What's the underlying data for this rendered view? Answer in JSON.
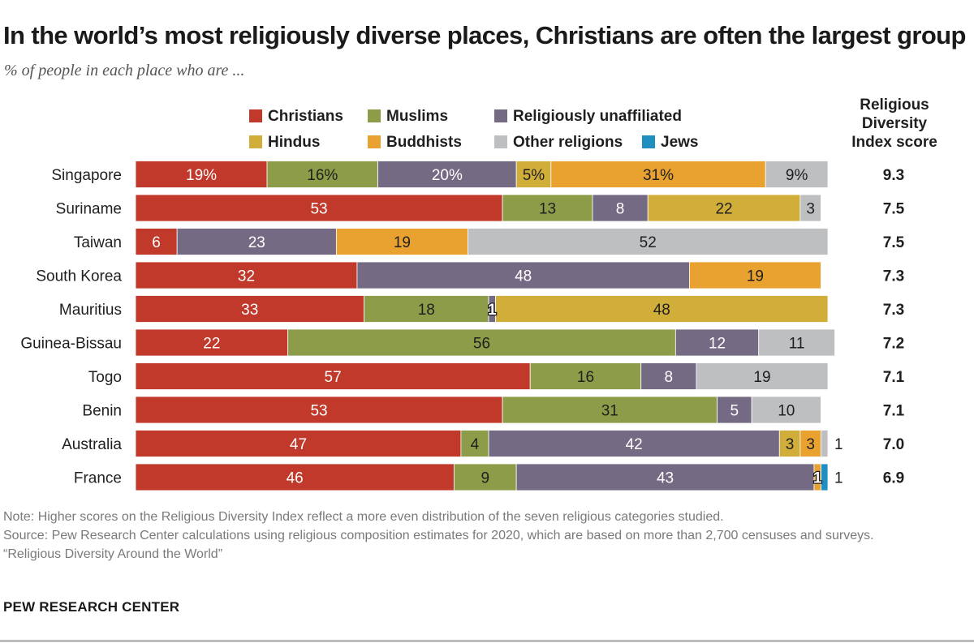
{
  "header": {
    "title": "In the world’s most religiously diverse places, Christians are often the largest group",
    "subtitle": "% of people in each place who are ..."
  },
  "index_header": {
    "line1": "Religious",
    "line2": "Diversity",
    "line3": "Index score"
  },
  "footer": {
    "note": "Note: Higher scores on the Religious Diversity Index reflect a more even distribution of the seven religious categories studied.",
    "source": "Source: Pew Research Center calculations using religious composition estimates for 2020, which are based on more than 2,700 censuses and surveys.",
    "report": "“Religious Diversity Around the World”",
    "brand": "PEW RESEARCH CENTER"
  },
  "chart_data": {
    "type": "bar",
    "orientation": "horizontal",
    "stacked": true,
    "title": "In the world’s most religiously diverse places, Christians are often the largest group",
    "subtitle": "% of people in each place who are ...",
    "xlim": [
      0,
      100
    ],
    "categories": [
      "Singapore",
      "Suriname",
      "Taiwan",
      "South Korea",
      "Mauritius",
      "Guinea-Bissau",
      "Togo",
      "Benin",
      "Australia",
      "France"
    ],
    "series": [
      {
        "name": "Christians",
        "color": "#c0392b",
        "values": [
          19,
          53,
          6,
          32,
          33,
          22,
          57,
          53,
          47,
          46
        ]
      },
      {
        "name": "Muslims",
        "color": "#8c9c48",
        "values": [
          16,
          13,
          0,
          0,
          18,
          56,
          16,
          31,
          4,
          9
        ]
      },
      {
        "name": "Religiously unaffiliated",
        "color": "#756a83",
        "values": [
          20,
          8,
          23,
          48,
          1,
          12,
          8,
          5,
          42,
          43
        ]
      },
      {
        "name": "Hindus",
        "color": "#d1ae3a",
        "values": [
          5,
          22,
          0,
          0,
          48,
          0,
          0,
          0,
          3,
          0
        ]
      },
      {
        "name": "Buddhists",
        "color": "#e9a130",
        "values": [
          31,
          0,
          19,
          19,
          0,
          0,
          0,
          0,
          3,
          1
        ]
      },
      {
        "name": "Other religions",
        "color": "#bdbfc1",
        "values": [
          9,
          3,
          52,
          0,
          0,
          11,
          19,
          10,
          1,
          0
        ]
      },
      {
        "name": "Jews",
        "color": "#1f8fc1",
        "values": [
          0,
          0,
          0,
          0,
          0,
          0,
          0,
          0,
          0,
          1
        ]
      }
    ],
    "labels": [
      [
        "19%",
        "16%",
        "20%",
        "5%",
        "31%",
        "9%"
      ],
      [
        "53",
        "13",
        "8",
        "22",
        "3"
      ],
      [
        "6",
        "23",
        "19",
        "52"
      ],
      [
        "32",
        "48",
        "19"
      ],
      [
        "33",
        "18",
        "1",
        "48"
      ],
      [
        "22",
        "56",
        "12",
        "11"
      ],
      [
        "57",
        "16",
        "8",
        "19"
      ],
      [
        "53",
        "31",
        "5",
        "10"
      ],
      [
        "47",
        "4",
        "42",
        "3",
        "3",
        "1"
      ],
      [
        "46",
        "9",
        "43",
        "1",
        "1"
      ]
    ],
    "index_scores": [
      "9.3",
      "7.5",
      "7.5",
      "7.3",
      "7.3",
      "7.2",
      "7.1",
      "7.1",
      "7.0",
      "6.9"
    ]
  }
}
